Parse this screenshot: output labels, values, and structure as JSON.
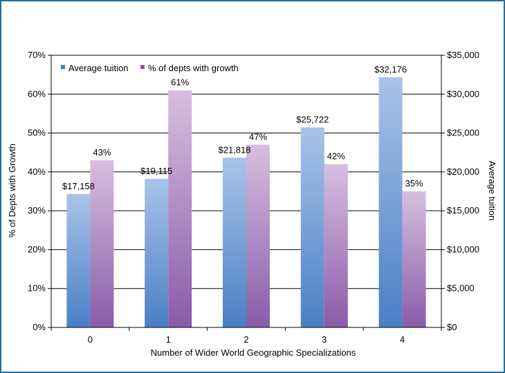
{
  "chart_data": {
    "type": "bar",
    "categories": [
      "0",
      "1",
      "2",
      "3",
      "4"
    ],
    "xlabel": "Number of  Wider World Geographic Specializations",
    "y_left": {
      "label": "% of Depts with Growth",
      "lim": [
        0,
        70
      ],
      "ticks": [
        0,
        10,
        20,
        30,
        40,
        50,
        60,
        70
      ],
      "tick_labels": [
        "0%",
        "10%",
        "20%",
        "30%",
        "40%",
        "50%",
        "60%",
        "70%"
      ]
    },
    "y_right": {
      "label": "Average tuition",
      "lim": [
        0,
        35000
      ],
      "ticks": [
        0,
        5000,
        10000,
        15000,
        20000,
        25000,
        30000,
        35000
      ],
      "tick_labels": [
        "$0",
        "$5,000",
        "$10,000",
        "$15,000",
        "$20,000",
        "$25,000",
        "$30,000",
        "$35,000"
      ]
    },
    "series": [
      {
        "name": "Average tuition",
        "axis": "right",
        "values": [
          17158,
          19115,
          21818,
          25722,
          32176
        ],
        "labels": [
          "$17,158",
          "$19,115",
          "$21,818",
          "$25,722",
          "$32,176"
        ],
        "color_top": "#a9c3e8",
        "color_bottom": "#4a7fc6"
      },
      {
        "name": "% of depts with growth",
        "axis": "left",
        "values": [
          43,
          61,
          47,
          42,
          35
        ],
        "labels": [
          "43%",
          "61%",
          "47%",
          "42%",
          "35%"
        ],
        "color_top": "#d6bfe0",
        "color_bottom": "#8a5ba8"
      }
    ],
    "grid": true,
    "legend_position": "top-left"
  },
  "colors": {
    "frame": "#1f6fa6"
  }
}
